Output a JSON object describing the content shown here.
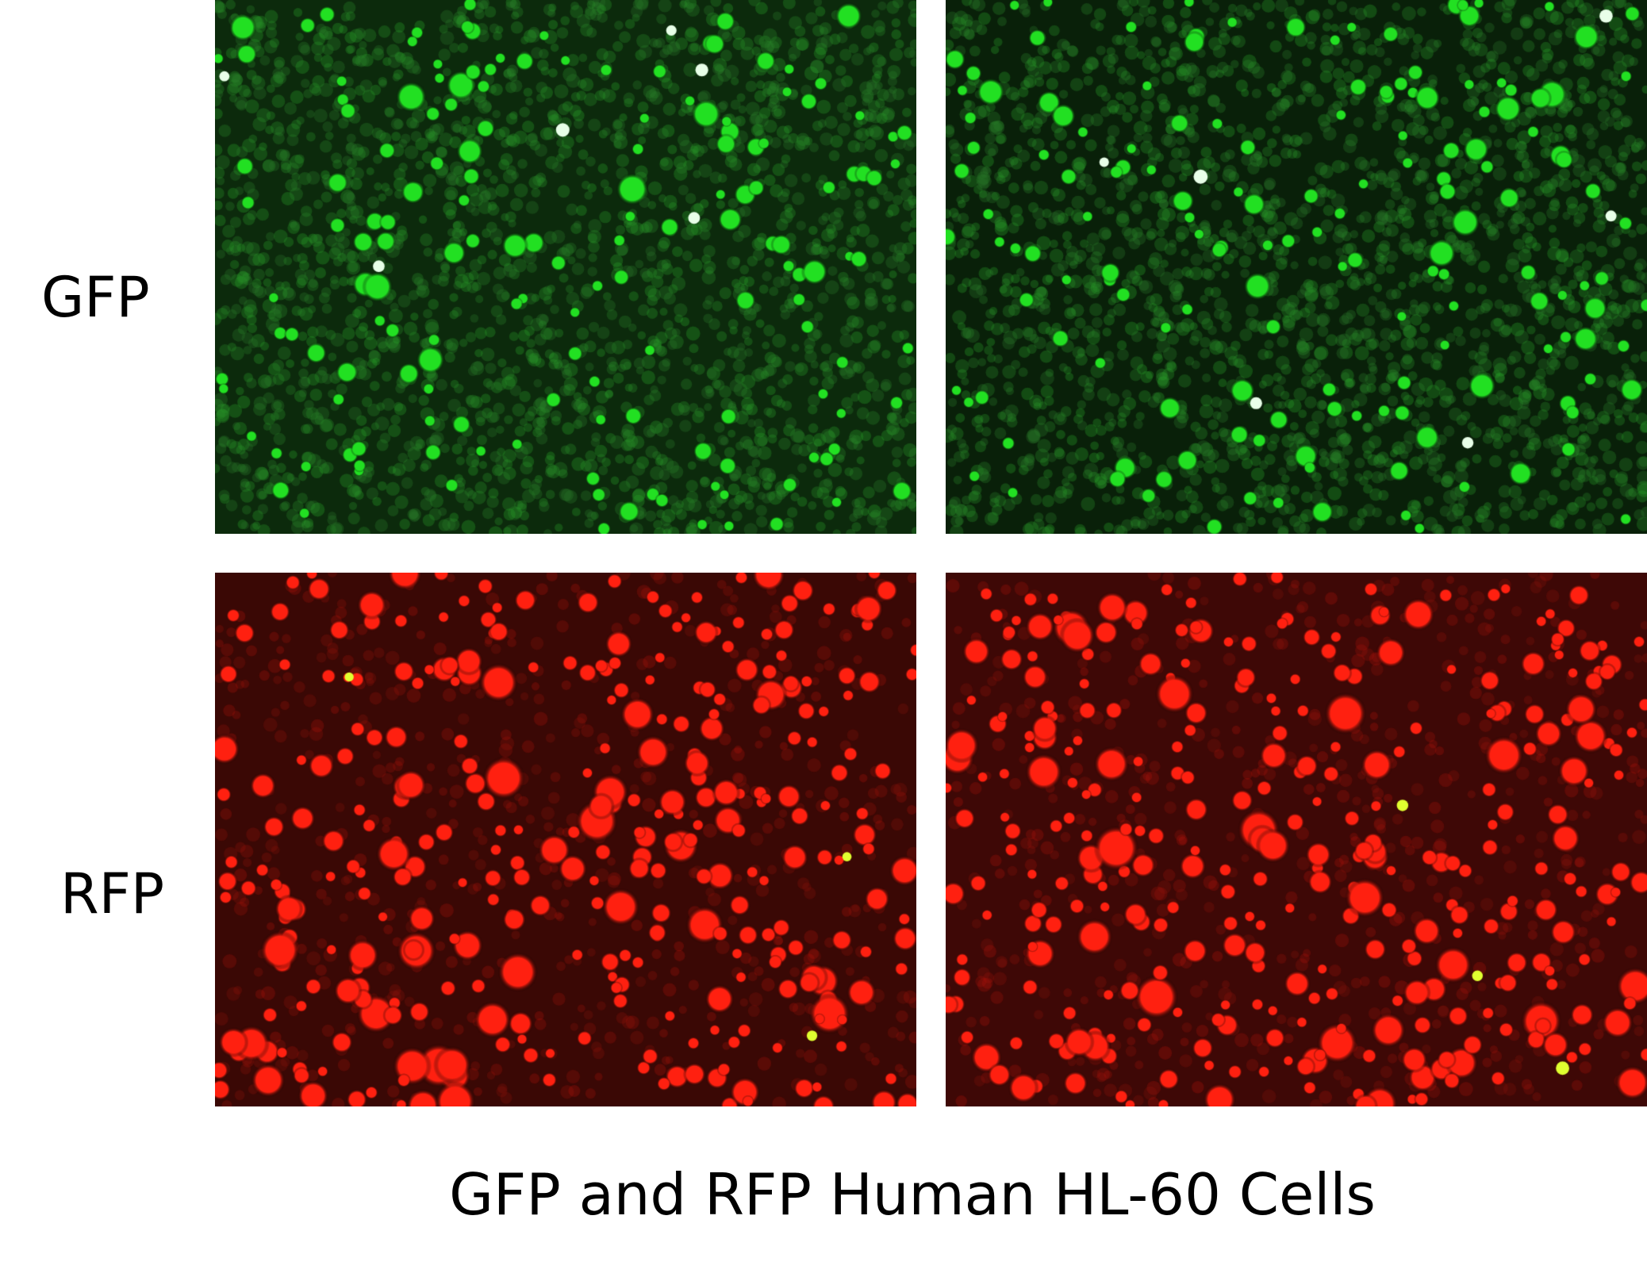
{
  "figure": {
    "row_labels": {
      "gfp": "GFP",
      "rfp": "RFP"
    },
    "caption": "GFP and RFP Human HL-60 Cells",
    "panels": [
      {
        "row": "GFP",
        "column": 1,
        "channel_color": "#22e022",
        "background": "#0c2a0c"
      },
      {
        "row": "GFP",
        "column": 2,
        "channel_color": "#22e022",
        "background": "#092009"
      },
      {
        "row": "RFP",
        "column": 1,
        "channel_color": "#ff2010",
        "background": "#3a0805"
      },
      {
        "row": "RFP",
        "column": 2,
        "channel_color": "#ff2010",
        "background": "#3e0806"
      }
    ]
  }
}
